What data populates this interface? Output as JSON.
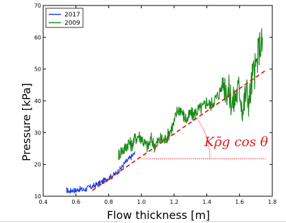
{
  "colors": {
    "series_2017": "#1f3fe0",
    "series_2009": "#1a8a1a",
    "fit_line": "#e41a1c",
    "annotation": "#e41a1c"
  },
  "chart_data": {
    "type": "line",
    "xlabel": "Flow thickness [m]",
    "ylabel": "Pressure [kPa]",
    "xlim": [
      0.4,
      1.8
    ],
    "ylim": [
      10,
      70
    ],
    "xticks": [
      "0.4",
      "0.6",
      "0.8",
      "1.0",
      "1.2",
      "1.4",
      "1.6",
      "1.8"
    ],
    "yticks": [
      "10",
      "20",
      "30",
      "40",
      "50",
      "60",
      "70"
    ],
    "legend_placement": "top-left",
    "grid": false,
    "series": [
      {
        "name": "2017",
        "color": "#1f3fe0",
        "x": [
          0.54,
          0.56,
          0.58,
          0.6,
          0.62,
          0.64,
          0.66,
          0.68,
          0.7,
          0.72,
          0.74,
          0.76,
          0.78,
          0.8,
          0.82,
          0.84,
          0.86,
          0.88,
          0.9,
          0.92,
          0.94,
          0.96
        ],
        "y": [
          12.0,
          11.5,
          12.0,
          11.8,
          12.3,
          12.0,
          12.2,
          12.8,
          13.0,
          13.5,
          14.0,
          14.5,
          15.2,
          15.8,
          16.3,
          17.0,
          18.0,
          19.0,
          20.5,
          21.5,
          22.5,
          23.5
        ]
      },
      {
        "name": "2009",
        "color": "#1a8a1a",
        "x": [
          0.86,
          0.88,
          0.9,
          0.92,
          0.94,
          0.96,
          0.98,
          1.0,
          1.02,
          1.04,
          1.06,
          1.08,
          1.1,
          1.12,
          1.14,
          1.16,
          1.18,
          1.2,
          1.22,
          1.24,
          1.26,
          1.28,
          1.3,
          1.32,
          1.34,
          1.36,
          1.38,
          1.4,
          1.42,
          1.44,
          1.46,
          1.48,
          1.5,
          1.52,
          1.54,
          1.56,
          1.58,
          1.6,
          1.62,
          1.64,
          1.66,
          1.68,
          1.7,
          1.72,
          1.74
        ],
        "y": [
          23.0,
          24.5,
          25.0,
          27.0,
          26.0,
          28.0,
          29.0,
          28.5,
          26.5,
          25.5,
          28.0,
          26.0,
          27.0,
          28.0,
          27.5,
          29.0,
          31.0,
          33.0,
          37.0,
          37.5,
          35.0,
          34.0,
          36.0,
          35.5,
          37.0,
          37.5,
          38.0,
          40.0,
          38.5,
          40.0,
          41.0,
          43.0,
          46.0,
          44.0,
          42.0,
          39.0,
          42.0,
          44.0,
          37.0,
          43.0,
          40.0,
          48.0,
          50.0,
          57.0,
          58.0
        ]
      }
    ],
    "fit_line": {
      "x": [
        0.7,
        1.76
      ],
      "y": [
        11.8,
        49.6
      ]
    },
    "reference_line": {
      "x": [
        1.0,
        1.76
      ],
      "y": [
        21.8,
        21.8
      ]
    },
    "annotation": "Kρ̄g cos θ"
  }
}
